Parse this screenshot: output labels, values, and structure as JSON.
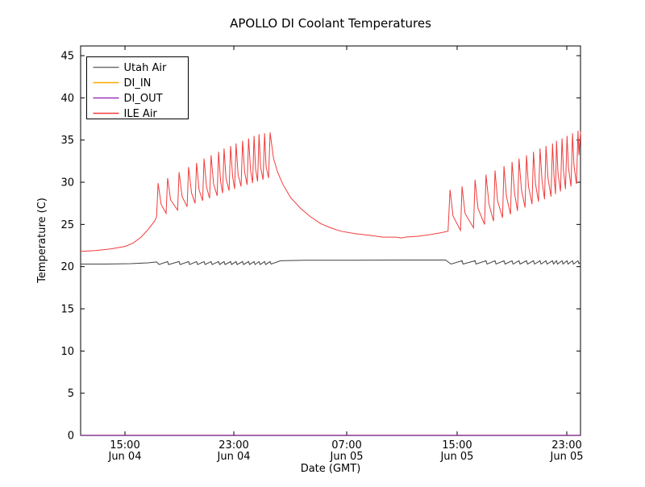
{
  "figure": {
    "background": "#ffffff",
    "accent_colors": {
      "utah_air": "#404040",
      "di_in": "#ffaa00",
      "di_out": "#9933bb",
      "ile_air": "#f03c3c"
    }
  },
  "chart_data": {
    "type": "line",
    "title": "APOLLO DI Coolant Temperatures",
    "xlabel": "Date (GMT)",
    "ylabel": "Temperature (C)",
    "ylim": [
      0,
      46.15
    ],
    "yticks": [
      0,
      5,
      10,
      15,
      20,
      25,
      30,
      35,
      40,
      45
    ],
    "grid": false,
    "xticks": [
      {
        "time": "15:00",
        "date": "Jun 04",
        "pos": 0.0887
      },
      {
        "time": "23:00",
        "date": "Jun 04",
        "pos": 0.3065
      },
      {
        "time": "07:00",
        "date": "Jun 05",
        "pos": 0.5323
      },
      {
        "time": "15:00",
        "date": "Jun 05",
        "pos": 0.7532
      },
      {
        "time": "23:00",
        "date": "Jun 05",
        "pos": 0.9726
      }
    ],
    "legend": {
      "position": "upper-left",
      "entries": [
        {
          "label": "Utah Air",
          "color": "#707070"
        },
        {
          "label": "DI_IN",
          "color": "#ffaa00"
        },
        {
          "label": "DI_OUT",
          "color": "#9933bb"
        },
        {
          "label": "ILE Air",
          "color": "#f03c3c"
        }
      ]
    },
    "series": [
      {
        "name": "Utah Air",
        "color": "#404040",
        "points": [
          [
            0.0,
            20.3
          ],
          [
            0.05,
            20.3
          ],
          [
            0.1,
            20.35
          ],
          [
            0.135,
            20.45
          ],
          [
            0.152,
            20.55
          ],
          [
            0.157,
            20.25
          ],
          [
            0.174,
            20.6
          ],
          [
            0.176,
            20.25
          ],
          [
            0.197,
            20.6
          ],
          [
            0.199,
            20.25
          ],
          [
            0.216,
            20.6
          ],
          [
            0.218,
            20.25
          ],
          [
            0.232,
            20.6
          ],
          [
            0.234,
            20.25
          ],
          [
            0.247,
            20.6
          ],
          [
            0.249,
            20.25
          ],
          [
            0.261,
            20.6
          ],
          [
            0.263,
            20.25
          ],
          [
            0.276,
            20.6
          ],
          [
            0.278,
            20.25
          ],
          [
            0.287,
            20.6
          ],
          [
            0.289,
            20.25
          ],
          [
            0.3,
            20.6
          ],
          [
            0.302,
            20.25
          ],
          [
            0.311,
            20.6
          ],
          [
            0.313,
            20.25
          ],
          [
            0.324,
            20.6
          ],
          [
            0.326,
            20.25
          ],
          [
            0.336,
            20.6
          ],
          [
            0.338,
            20.25
          ],
          [
            0.347,
            20.6
          ],
          [
            0.349,
            20.25
          ],
          [
            0.357,
            20.6
          ],
          [
            0.359,
            20.25
          ],
          [
            0.368,
            20.6
          ],
          [
            0.37,
            20.25
          ],
          [
            0.379,
            20.6
          ],
          [
            0.381,
            20.3
          ],
          [
            0.4,
            20.7
          ],
          [
            0.45,
            20.75
          ],
          [
            0.55,
            20.75
          ],
          [
            0.65,
            20.78
          ],
          [
            0.73,
            20.78
          ],
          [
            0.741,
            20.3
          ],
          [
            0.763,
            20.7
          ],
          [
            0.765,
            20.3
          ],
          [
            0.789,
            20.7
          ],
          [
            0.791,
            20.3
          ],
          [
            0.811,
            20.7
          ],
          [
            0.813,
            20.3
          ],
          [
            0.829,
            20.7
          ],
          [
            0.831,
            20.3
          ],
          [
            0.847,
            20.7
          ],
          [
            0.849,
            20.3
          ],
          [
            0.863,
            20.7
          ],
          [
            0.865,
            20.3
          ],
          [
            0.877,
            20.7
          ],
          [
            0.879,
            20.3
          ],
          [
            0.892,
            20.7
          ],
          [
            0.894,
            20.3
          ],
          [
            0.906,
            20.7
          ],
          [
            0.908,
            20.3
          ],
          [
            0.919,
            20.7
          ],
          [
            0.921,
            20.3
          ],
          [
            0.931,
            20.7
          ],
          [
            0.933,
            20.3
          ],
          [
            0.944,
            20.7
          ],
          [
            0.946,
            20.3
          ],
          [
            0.952,
            20.7
          ],
          [
            0.954,
            20.3
          ],
          [
            0.963,
            20.7
          ],
          [
            0.965,
            20.3
          ],
          [
            0.973,
            20.7
          ],
          [
            0.975,
            20.3
          ],
          [
            0.984,
            20.7
          ],
          [
            0.986,
            20.3
          ],
          [
            0.995,
            20.7
          ],
          [
            0.997,
            20.35
          ],
          [
            1.0,
            20.55
          ]
        ]
      },
      {
        "name": "DI_IN",
        "color": "#ffaa00",
        "points": [
          [
            0.0,
            0
          ],
          [
            1.0,
            0
          ]
        ]
      },
      {
        "name": "DI_OUT",
        "color": "#9933bb",
        "points": [
          [
            0.0,
            0
          ],
          [
            1.0,
            0
          ]
        ]
      },
      {
        "name": "ILE Air",
        "color": "#f03c3c",
        "points": [
          [
            0.0,
            21.8
          ],
          [
            0.03,
            21.9
          ],
          [
            0.06,
            22.1
          ],
          [
            0.089,
            22.4
          ],
          [
            0.105,
            22.8
          ],
          [
            0.121,
            23.5
          ],
          [
            0.135,
            24.4
          ],
          [
            0.148,
            25.4
          ],
          [
            0.152,
            25.9
          ],
          [
            0.155,
            29.9
          ],
          [
            0.161,
            27.4
          ],
          [
            0.171,
            26.3
          ],
          [
            0.174,
            30.5
          ],
          [
            0.18,
            27.9
          ],
          [
            0.194,
            26.7
          ],
          [
            0.197,
            31.2
          ],
          [
            0.203,
            28.3
          ],
          [
            0.213,
            27.1
          ],
          [
            0.216,
            31.8
          ],
          [
            0.222,
            28.7
          ],
          [
            0.229,
            27.5
          ],
          [
            0.232,
            32.3
          ],
          [
            0.237,
            29.1
          ],
          [
            0.244,
            27.8
          ],
          [
            0.247,
            32.8
          ],
          [
            0.252,
            29.4
          ],
          [
            0.258,
            28.1
          ],
          [
            0.261,
            33.2
          ],
          [
            0.266,
            29.8
          ],
          [
            0.273,
            28.4
          ],
          [
            0.276,
            33.6
          ],
          [
            0.28,
            30.1
          ],
          [
            0.284,
            28.7
          ],
          [
            0.287,
            34.0
          ],
          [
            0.291,
            30.4
          ],
          [
            0.297,
            29.0
          ],
          [
            0.3,
            34.3
          ],
          [
            0.304,
            30.7
          ],
          [
            0.308,
            29.2
          ],
          [
            0.311,
            34.6
          ],
          [
            0.315,
            30.9
          ],
          [
            0.321,
            29.5
          ],
          [
            0.324,
            34.9
          ],
          [
            0.328,
            31.2
          ],
          [
            0.333,
            29.7
          ],
          [
            0.336,
            35.2
          ],
          [
            0.34,
            31.4
          ],
          [
            0.344,
            29.9
          ],
          [
            0.347,
            35.5
          ],
          [
            0.35,
            31.6
          ],
          [
            0.354,
            30.1
          ],
          [
            0.357,
            35.7
          ],
          [
            0.36,
            31.8
          ],
          [
            0.365,
            30.3
          ],
          [
            0.368,
            35.8
          ],
          [
            0.371,
            31.9
          ],
          [
            0.376,
            30.5
          ],
          [
            0.379,
            35.9
          ],
          [
            0.386,
            32.8
          ],
          [
            0.394,
            31.2
          ],
          [
            0.405,
            29.7
          ],
          [
            0.42,
            28.2
          ],
          [
            0.44,
            26.9
          ],
          [
            0.46,
            25.9
          ],
          [
            0.48,
            25.1
          ],
          [
            0.5,
            24.6
          ],
          [
            0.52,
            24.2
          ],
          [
            0.55,
            23.9
          ],
          [
            0.58,
            23.7
          ],
          [
            0.605,
            23.5
          ],
          [
            0.63,
            23.5
          ],
          [
            0.642,
            23.4
          ],
          [
            0.65,
            23.5
          ],
          [
            0.675,
            23.6
          ],
          [
            0.7,
            23.8
          ],
          [
            0.72,
            24.0
          ],
          [
            0.735,
            24.2
          ],
          [
            0.739,
            29.1
          ],
          [
            0.745,
            26.0
          ],
          [
            0.76,
            24.3
          ],
          [
            0.763,
            29.5
          ],
          [
            0.769,
            26.3
          ],
          [
            0.786,
            24.6
          ],
          [
            0.789,
            30.3
          ],
          [
            0.795,
            26.9
          ],
          [
            0.808,
            25.0
          ],
          [
            0.811,
            30.9
          ],
          [
            0.817,
            27.4
          ],
          [
            0.826,
            25.4
          ],
          [
            0.829,
            31.4
          ],
          [
            0.834,
            27.8
          ],
          [
            0.844,
            25.8
          ],
          [
            0.847,
            31.9
          ],
          [
            0.852,
            28.3
          ],
          [
            0.86,
            26.2
          ],
          [
            0.863,
            32.4
          ],
          [
            0.868,
            28.7
          ],
          [
            0.874,
            26.6
          ],
          [
            0.877,
            32.8
          ],
          [
            0.882,
            29.1
          ],
          [
            0.889,
            27.0
          ],
          [
            0.892,
            33.2
          ],
          [
            0.896,
            29.5
          ],
          [
            0.903,
            27.4
          ],
          [
            0.906,
            33.6
          ],
          [
            0.91,
            29.8
          ],
          [
            0.916,
            27.7
          ],
          [
            0.919,
            34.0
          ],
          [
            0.923,
            30.2
          ],
          [
            0.928,
            28.0
          ],
          [
            0.931,
            34.3
          ],
          [
            0.935,
            30.5
          ],
          [
            0.941,
            28.3
          ],
          [
            0.944,
            34.6
          ],
          [
            0.947,
            30.8
          ],
          [
            0.95,
            28.6
          ],
          [
            0.952,
            34.9
          ],
          [
            0.955,
            31.1
          ],
          [
            0.96,
            28.9
          ],
          [
            0.963,
            35.2
          ],
          [
            0.966,
            31.4
          ],
          [
            0.97,
            29.2
          ],
          [
            0.973,
            35.5
          ],
          [
            0.976,
            31.7
          ],
          [
            0.981,
            29.5
          ],
          [
            0.984,
            35.8
          ],
          [
            0.987,
            32.0
          ],
          [
            0.992,
            29.8
          ],
          [
            0.995,
            36.1
          ],
          [
            0.997,
            33.2
          ],
          [
            1.0,
            36.0
          ]
        ]
      }
    ]
  }
}
